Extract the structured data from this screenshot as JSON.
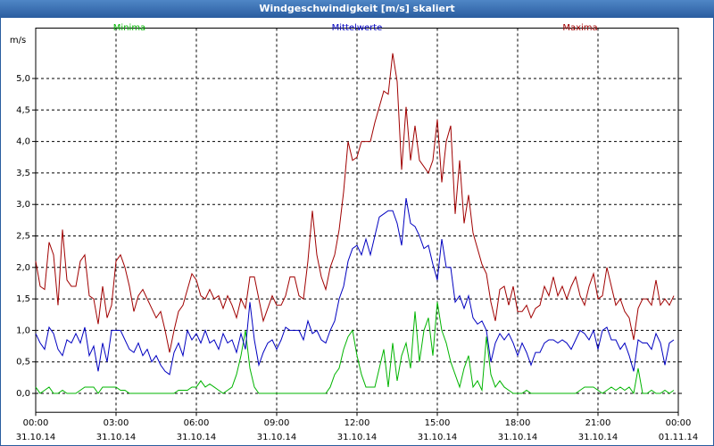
{
  "chart_data": {
    "type": "line",
    "title": "Windgeschwindigkeit [m/s] skaliert",
    "y_label": "m/s",
    "xlim": [
      0,
      1440
    ],
    "xticks": [
      {
        "value": 0,
        "label": "00:00\n31.10.14"
      },
      {
        "value": 180,
        "label": "03:00\n31.10.14"
      },
      {
        "value": 360,
        "label": "06:00\n31.10.14"
      },
      {
        "value": 540,
        "label": "09:00\n31.10.14"
      },
      {
        "value": 720,
        "label": "12:00\n31.10.14"
      },
      {
        "value": 900,
        "label": "15:00\n31.10.14"
      },
      {
        "value": 1080,
        "label": "18:00\n31.10.14"
      },
      {
        "value": 1260,
        "label": "21:00\n31.10.14"
      },
      {
        "value": 1440,
        "label": "00:00\n01.11.14"
      }
    ],
    "ylim": [
      -0.3,
      5.8
    ],
    "yticks": [
      {
        "value": 0,
        "label": "0,0"
      },
      {
        "value": 0.5,
        "label": "0,5"
      },
      {
        "value": 1,
        "label": "1,0"
      },
      {
        "value": 1.5,
        "label": "1,5"
      },
      {
        "value": 2,
        "label": "2,0"
      },
      {
        "value": 2.5,
        "label": "2,5"
      },
      {
        "value": 3,
        "label": "3,0"
      },
      {
        "value": 3.5,
        "label": "3,5"
      },
      {
        "value": 4,
        "label": "4,0"
      },
      {
        "value": 4.5,
        "label": "4,5"
      },
      {
        "value": 5,
        "label": "5,0"
      }
    ],
    "grid": true,
    "x": [
      0,
      10,
      20,
      30,
      40,
      50,
      60,
      70,
      80,
      90,
      100,
      110,
      120,
      130,
      140,
      150,
      160,
      170,
      180,
      190,
      200,
      210,
      220,
      230,
      240,
      250,
      260,
      270,
      280,
      290,
      300,
      310,
      320,
      330,
      340,
      350,
      360,
      370,
      380,
      390,
      400,
      410,
      420,
      430,
      440,
      450,
      460,
      470,
      480,
      490,
      500,
      510,
      520,
      530,
      540,
      550,
      560,
      570,
      580,
      590,
      600,
      610,
      620,
      630,
      640,
      650,
      660,
      670,
      680,
      690,
      700,
      710,
      720,
      730,
      740,
      750,
      760,
      770,
      780,
      790,
      800,
      810,
      820,
      830,
      840,
      850,
      860,
      870,
      880,
      890,
      900,
      910,
      920,
      930,
      940,
      950,
      960,
      970,
      980,
      990,
      1000,
      1010,
      1020,
      1030,
      1040,
      1050,
      1060,
      1070,
      1080,
      1090,
      1100,
      1110,
      1120,
      1130,
      1140,
      1150,
      1160,
      1170,
      1180,
      1190,
      1200,
      1210,
      1220,
      1230,
      1240,
      1250,
      1260,
      1270,
      1280,
      1290,
      1300,
      1310,
      1320,
      1330,
      1340,
      1350,
      1360,
      1370,
      1380,
      1390,
      1400,
      1410,
      1420,
      1430
    ],
    "series": [
      {
        "name": "Minima",
        "color": "#00b400",
        "values": [
          0.1,
          0,
          0.05,
          0.1,
          0,
          0,
          0.05,
          0,
          0,
          0,
          0.05,
          0.1,
          0.1,
          0.1,
          0,
          0.1,
          0.1,
          0.1,
          0.1,
          0.05,
          0.05,
          0,
          0,
          0,
          0,
          0,
          0,
          0,
          0,
          0,
          0,
          0,
          0.05,
          0.05,
          0.05,
          0.1,
          0.1,
          0.2,
          0.1,
          0.15,
          0.1,
          0.05,
          0,
          0.05,
          0.1,
          0.3,
          0.6,
          1.0,
          0.4,
          0.1,
          0,
          0,
          0,
          0,
          0,
          0,
          0,
          0,
          0,
          0,
          0,
          0,
          0,
          0,
          0,
          0,
          0.1,
          0.3,
          0.4,
          0.7,
          0.9,
          1.0,
          0.6,
          0.3,
          0.1,
          0.1,
          0.1,
          0.4,
          0.7,
          0.1,
          0.8,
          0.2,
          0.6,
          0.8,
          0.4,
          1.3,
          0.5,
          1.0,
          1.2,
          0.6,
          1.45,
          1.0,
          0.8,
          0.5,
          0.3,
          0.1,
          0.4,
          0.6,
          0.1,
          0.2,
          0.05,
          0.9,
          0.3,
          0.1,
          0.2,
          0.1,
          0.05,
          0,
          0,
          0,
          0.05,
          0,
          0,
          0,
          0,
          0,
          0,
          0,
          0,
          0,
          0,
          0,
          0.05,
          0.1,
          0.1,
          0.1,
          0.05,
          0,
          0.05,
          0.1,
          0.05,
          0.1,
          0.05,
          0.1,
          0,
          0.4,
          0,
          0,
          0.05,
          0,
          0,
          0.05,
          0,
          0.05
        ]
      },
      {
        "name": "Mittelwerte",
        "color": "#0000c0",
        "values": [
          0.95,
          0.8,
          0.7,
          1.05,
          0.95,
          0.7,
          0.6,
          0.85,
          0.8,
          0.95,
          0.8,
          1.05,
          0.6,
          0.75,
          0.35,
          0.8,
          0.5,
          1.0,
          1.0,
          1.0,
          0.85,
          0.7,
          0.65,
          0.8,
          0.6,
          0.7,
          0.5,
          0.6,
          0.45,
          0.35,
          0.3,
          0.65,
          0.8,
          0.6,
          1.0,
          0.85,
          0.95,
          0.8,
          1.0,
          0.8,
          0.85,
          0.7,
          0.95,
          0.8,
          0.85,
          0.65,
          0.95,
          0.7,
          1.45,
          0.85,
          0.45,
          0.65,
          0.8,
          0.85,
          0.7,
          0.85,
          1.05,
          1.0,
          1.0,
          1.0,
          0.85,
          1.15,
          0.95,
          1.0,
          0.85,
          0.8,
          1.0,
          1.15,
          1.5,
          1.7,
          2.1,
          2.3,
          2.35,
          2.2,
          2.45,
          2.2,
          2.5,
          2.8,
          2.85,
          2.9,
          2.9,
          2.7,
          2.35,
          3.1,
          2.7,
          2.65,
          2.5,
          2.3,
          2.35,
          2.05,
          1.8,
          2.45,
          2.0,
          2.0,
          1.45,
          1.55,
          1.35,
          1.55,
          1.2,
          1.1,
          1.15,
          1.0,
          0.5,
          0.8,
          0.95,
          0.85,
          0.95,
          0.8,
          0.6,
          0.8,
          0.65,
          0.45,
          0.65,
          0.65,
          0.8,
          0.85,
          0.85,
          0.8,
          0.85,
          0.8,
          0.7,
          0.85,
          1.0,
          0.95,
          0.85,
          1.0,
          0.7,
          1.0,
          1.05,
          0.85,
          0.85,
          0.7,
          0.8,
          0.6,
          0.35,
          0.85,
          0.8,
          0.8,
          0.7,
          0.95,
          0.8,
          0.45,
          0.8,
          0.85
        ]
      },
      {
        "name": "Maxima",
        "color": "#a00000",
        "values": [
          2.1,
          1.7,
          1.65,
          2.4,
          2.2,
          1.4,
          2.6,
          1.8,
          1.7,
          1.7,
          2.1,
          2.2,
          1.55,
          1.5,
          1.1,
          1.7,
          1.2,
          1.4,
          2.1,
          2.2,
          2.0,
          1.7,
          1.3,
          1.55,
          1.65,
          1.5,
          1.35,
          1.2,
          1.3,
          1.0,
          0.65,
          1.0,
          1.3,
          1.4,
          1.65,
          1.9,
          1.8,
          1.55,
          1.5,
          1.65,
          1.5,
          1.55,
          1.35,
          1.55,
          1.4,
          1.2,
          1.5,
          1.35,
          1.85,
          1.85,
          1.5,
          1.15,
          1.35,
          1.55,
          1.4,
          1.4,
          1.55,
          1.85,
          1.85,
          1.55,
          1.5,
          2.1,
          2.9,
          2.2,
          1.85,
          1.65,
          2.0,
          2.2,
          2.6,
          3.2,
          4.0,
          3.7,
          3.75,
          4.0,
          4.0,
          4.0,
          4.3,
          4.55,
          4.8,
          4.75,
          5.4,
          4.95,
          3.55,
          4.55,
          3.7,
          4.25,
          3.7,
          3.6,
          3.5,
          3.7,
          4.35,
          3.35,
          4.0,
          4.25,
          2.85,
          3.7,
          2.7,
          3.15,
          2.55,
          2.3,
          2.05,
          1.9,
          1.45,
          1.15,
          1.65,
          1.7,
          1.4,
          1.7,
          1.3,
          1.3,
          1.4,
          1.2,
          1.35,
          1.4,
          1.7,
          1.55,
          1.85,
          1.55,
          1.7,
          1.5,
          1.7,
          1.85,
          1.55,
          1.4,
          1.7,
          1.9,
          1.5,
          1.55,
          2.0,
          1.7,
          1.4,
          1.5,
          1.3,
          1.2,
          0.85,
          1.35,
          1.5,
          1.5,
          1.4,
          1.8,
          1.4,
          1.5,
          1.4,
          1.55
        ]
      }
    ]
  }
}
